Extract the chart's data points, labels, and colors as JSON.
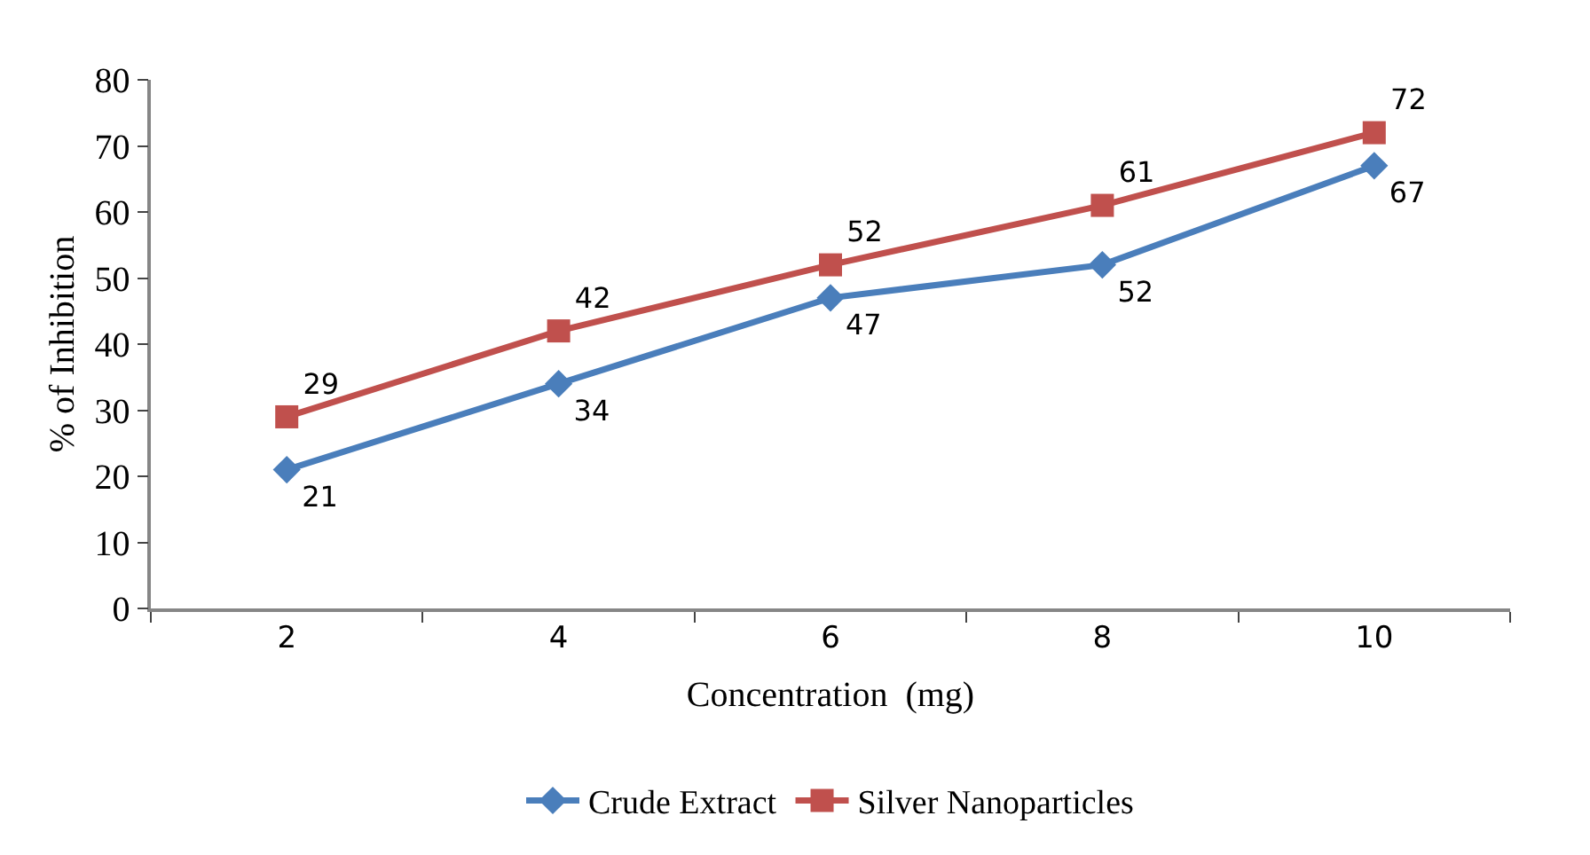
{
  "chart_data": {
    "type": "line",
    "xlabel": "Concentration  (mg)",
    "ylabel": "% of Inhibition",
    "categories": [
      "2",
      "4",
      "6",
      "8",
      "10"
    ],
    "series": [
      {
        "name": "Crude Extract",
        "color": "#4a7ebb",
        "marker": "diamond",
        "values": [
          21,
          34,
          47,
          52,
          67
        ]
      },
      {
        "name": "Silver Nanoparticles",
        "color": "#c0504d",
        "marker": "square",
        "values": [
          29,
          42,
          52,
          61,
          72
        ]
      }
    ],
    "ylim": [
      0,
      80
    ],
    "yticks": [
      0,
      10,
      20,
      30,
      40,
      50,
      60,
      70,
      80
    ],
    "data_labels": true,
    "legend": "bottom"
  }
}
